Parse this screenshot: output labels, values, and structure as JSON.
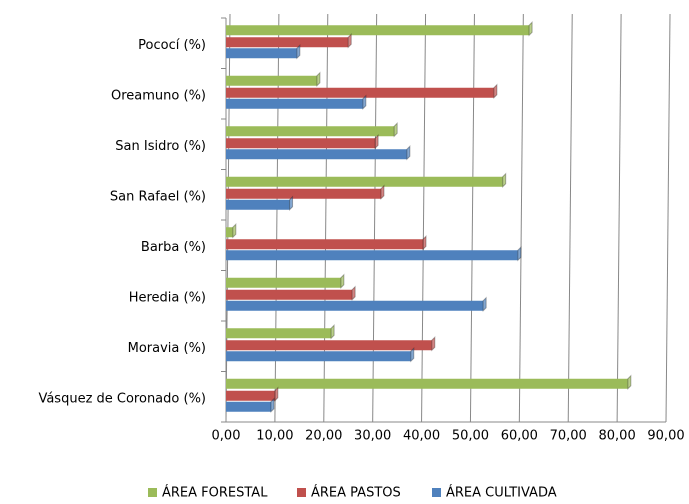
{
  "chart_data": {
    "type": "hbar",
    "categories": [
      "Pococí (%)",
      "Oreamuno (%)",
      "San Isidro (%)",
      "San Rafael (%)",
      "Barba (%)",
      "Heredia (%)",
      "Moravia (%)",
      "Vásquez de Coronado (%)"
    ],
    "series": [
      {
        "name": "ÁREA FORESTAL",
        "color": "#9bbb59",
        "values": [
          62.0,
          18.6,
          34.4,
          56.6,
          1.4,
          23.5,
          21.5,
          82.2
        ]
      },
      {
        "name": "ÁREA PASTOS",
        "color": "#c0504d",
        "values": [
          25.0,
          54.8,
          30.5,
          31.7,
          40.3,
          25.8,
          42.1,
          10.0
        ]
      },
      {
        "name": "ÁREA CULTIVADA",
        "color": "#4f81bd",
        "values": [
          14.5,
          28.0,
          37.0,
          13.0,
          59.7,
          52.6,
          37.8,
          9.2
        ]
      }
    ],
    "xlim": [
      0,
      90
    ],
    "xticks": [
      {
        "value": 0,
        "label": "0,00"
      },
      {
        "value": 10,
        "label": "10,00"
      },
      {
        "value": 20,
        "label": "20,00"
      },
      {
        "value": 30,
        "label": "30,00"
      },
      {
        "value": 40,
        "label": "40,00"
      },
      {
        "value": 50,
        "label": "50,00"
      },
      {
        "value": 60,
        "label": "60,00"
      },
      {
        "value": 70,
        "label": "70,00"
      },
      {
        "value": 80,
        "label": "80,00"
      },
      {
        "value": 90,
        "label": "90,00"
      }
    ],
    "grid": true,
    "legend": "bottom"
  }
}
